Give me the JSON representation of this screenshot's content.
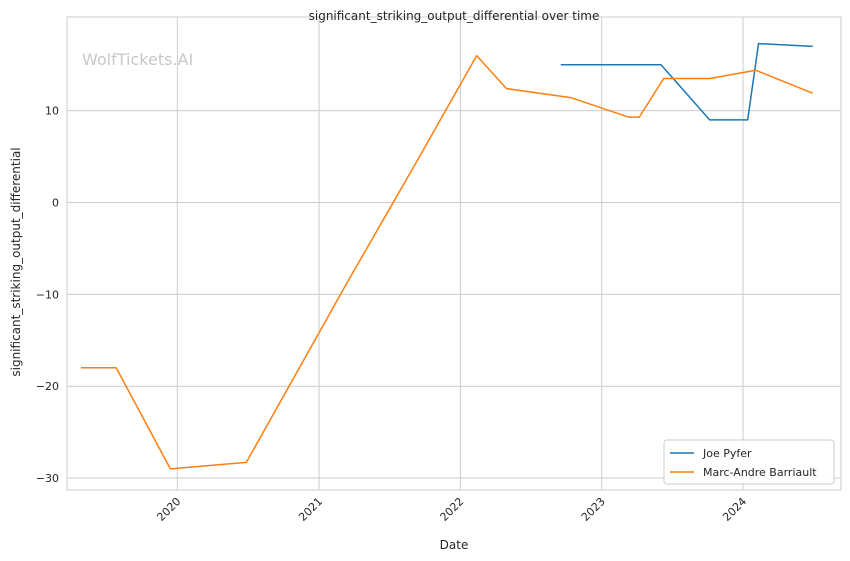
{
  "watermark": "WolfTickets.AI",
  "chart_data": {
    "type": "line",
    "title": "significant_striking_output_differential over time",
    "xlabel": "Date",
    "ylabel": "significant_striking_output_differential",
    "x_ticks": [
      "2020",
      "2021",
      "2022",
      "2023",
      "2024"
    ],
    "y_ticks": [
      -30,
      -20,
      -10,
      0,
      10
    ],
    "xlim": [
      "2019-03-22",
      "2024-09-10"
    ],
    "ylim": [
      -31.3,
      20.2
    ],
    "grid": true,
    "legend_position": "lower-right",
    "series": [
      {
        "name": "Joe Pyfer",
        "color": "#1f77b4",
        "points": [
          [
            "2022-09-17",
            15.0
          ],
          [
            "2023-06-03",
            15.0
          ],
          [
            "2023-10-07",
            9.0
          ],
          [
            "2024-01-13",
            9.0
          ],
          [
            "2024-02-10",
            17.3
          ],
          [
            "2024-06-29",
            17.0
          ]
        ]
      },
      {
        "name": "Marc-Andre Barriault",
        "color": "#ff7f0e",
        "points": [
          [
            "2019-04-27",
            -18.0
          ],
          [
            "2019-07-27",
            -18.0
          ],
          [
            "2019-12-14",
            -29.0
          ],
          [
            "2020-06-27",
            -28.3
          ],
          [
            "2021-03-20",
            -8.3
          ],
          [
            "2021-09-04",
            4.0
          ],
          [
            "2022-02-12",
            16.0
          ],
          [
            "2022-04-30",
            12.4
          ],
          [
            "2022-10-15",
            11.4
          ],
          [
            "2023-03-11",
            9.3
          ],
          [
            "2023-04-08",
            9.3
          ],
          [
            "2023-06-10",
            13.5
          ],
          [
            "2023-10-07",
            13.5
          ],
          [
            "2024-02-03",
            14.4
          ],
          [
            "2024-06-29",
            11.9
          ]
        ]
      }
    ]
  }
}
